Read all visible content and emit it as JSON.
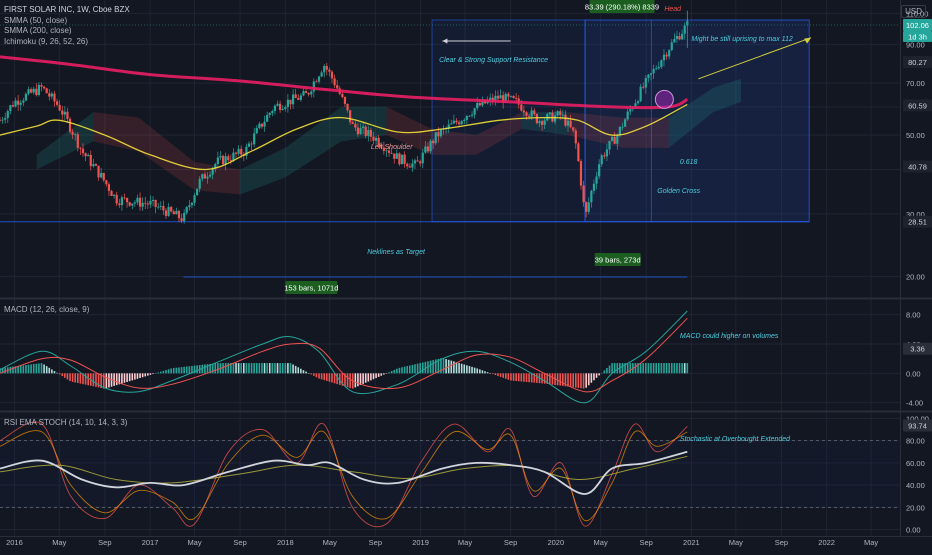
{
  "chart_header": {
    "title": "FIRST SOLAR INC, 1W, Cboe BZX",
    "indicators": [
      "SMMA (50, close)",
      "SMMA (200, close)",
      "Ichimoku (9, 26, 52, 26)"
    ],
    "currency": "USD"
  },
  "colors": {
    "background": "#131722",
    "grid": "#1f2433",
    "up": "#26a69a",
    "down": "#ef5350",
    "smma50": "#ffeb3b",
    "smma200": "#e91e63",
    "cloud_bull": "#1b5e20",
    "cloud_bear": "#7f1d1d",
    "box_blue": "#2962ff",
    "macd_line": "#26a69a",
    "signal_line": "#ef5350",
    "rsi_line": "#d1d4dc",
    "annotation_text": "#4dd0e1",
    "arrow": "#d4cf3f"
  },
  "chart_data": [
    {
      "type": "candlestick",
      "xlim": [
        "2015-11-23",
        "2022-07-18"
      ],
      "x_ticks": [
        "2016",
        "May",
        "Sep",
        "2017",
        "May",
        "Sep",
        "2018",
        "May",
        "Sep",
        "2019",
        "May",
        "Sep",
        "2020",
        "May",
        "Sep",
        "2021",
        "May",
        "Sep",
        "2022",
        "May"
      ],
      "y_ticks": [
        20.0,
        30.0,
        40.0,
        50.0,
        60.0,
        70.0,
        90.0,
        110.0
      ],
      "ylim": [
        17.5,
        120.0
      ],
      "scale": "log",
      "price_badges": [
        {
          "label": "102.06",
          "kind": "last"
        },
        {
          "label": "1d 3h",
          "kind": "countdown"
        },
        {
          "label": "80.27",
          "kind": "level"
        },
        {
          "label": "60.59",
          "kind": "level"
        },
        {
          "label": "40.78",
          "kind": "level"
        },
        {
          "label": "28.51",
          "kind": "level"
        }
      ],
      "series": [
        {
          "name": "SMMA (200, close)",
          "points": [
            [
              "2015-11-23",
              83
            ],
            [
              "2016-06-01",
              79
            ],
            [
              "2017-01-01",
              74
            ],
            [
              "2017-09-01",
              71
            ],
            [
              "2018-05-01",
              67
            ],
            [
              "2018-12-01",
              64
            ],
            [
              "2019-09-01",
              62
            ],
            [
              "2020-06-01",
              60
            ],
            [
              "2020-11-01",
              60
            ],
            [
              "2020-12-21",
              63
            ]
          ]
        },
        {
          "name": "SMMA (50, close)",
          "points": [
            [
              "2015-11-23",
              50
            ],
            [
              "2016-03-01",
              53
            ],
            [
              "2016-05-01",
              55
            ],
            [
              "2016-09-01",
              50
            ],
            [
              "2017-01-01",
              44
            ],
            [
              "2017-06-01",
              40
            ],
            [
              "2017-10-01",
              45
            ],
            [
              "2018-02-01",
              52
            ],
            [
              "2018-06-01",
              56
            ],
            [
              "2018-11-01",
              51
            ],
            [
              "2019-03-01",
              52
            ],
            [
              "2019-08-01",
              55
            ],
            [
              "2019-12-01",
              56
            ],
            [
              "2020-03-01",
              55
            ],
            [
              "2020-06-01",
              50
            ],
            [
              "2020-09-01",
              53
            ],
            [
              "2020-12-21",
              61
            ]
          ]
        },
        {
          "name": "Price (close, weekly approx.)",
          "points": [
            [
              "2015-11-23",
              55
            ],
            [
              "2016-01-01",
              62
            ],
            [
              "2016-03-15",
              68
            ],
            [
              "2016-05-01",
              60
            ],
            [
              "2016-07-01",
              45
            ],
            [
              "2016-10-01",
              33
            ],
            [
              "2017-01-01",
              32
            ],
            [
              "2017-04-01",
              29
            ],
            [
              "2017-05-15",
              37
            ],
            [
              "2017-07-01",
              42
            ],
            [
              "2017-09-15",
              45
            ],
            [
              "2017-12-01",
              60
            ],
            [
              "2018-03-01",
              65
            ],
            [
              "2018-04-15",
              79
            ],
            [
              "2018-05-15",
              70
            ],
            [
              "2018-07-01",
              53
            ],
            [
              "2018-09-01",
              49
            ],
            [
              "2018-11-01",
              43
            ],
            [
              "2018-12-20",
              41
            ],
            [
              "2019-02-15",
              50
            ],
            [
              "2019-04-15",
              55
            ],
            [
              "2019-06-01",
              60
            ],
            [
              "2019-08-01",
              64
            ],
            [
              "2019-09-15",
              62
            ],
            [
              "2019-11-15",
              55
            ],
            [
              "2020-01-15",
              57
            ],
            [
              "2020-02-20",
              50
            ],
            [
              "2020-03-20",
              29
            ],
            [
              "2020-05-01",
              43
            ],
            [
              "2020-06-15",
              50
            ],
            [
              "2020-08-01",
              62
            ],
            [
              "2020-09-15",
              74
            ],
            [
              "2020-11-01",
              88
            ],
            [
              "2020-12-21",
              102
            ]
          ]
        }
      ],
      "annotations": {
        "head_label": "Head",
        "target_note": "Might be still uprising to max 112",
        "support_note": "Clear & Strong Support Resistance",
        "left_shoulder": "Left Shoulder",
        "fib_level": "0.618",
        "golden_cross": "Golden Cross",
        "neckline_note": "Neklines as Target",
        "measure_top": "83.39 (290.18%) 8339",
        "measure_bars_left": "153 bars, 1071d",
        "measure_bars_right": "39 bars, 273d"
      }
    },
    {
      "type": "line",
      "title": "MACD (12, 26, close, 9)",
      "y_ticks": [
        8.0,
        4.0,
        0.0,
        -4.0
      ],
      "ylim": [
        -5,
        10
      ],
      "badge": "3.36",
      "annotation": "MACD could higher on volumes",
      "series": [
        {
          "name": "MACD",
          "points": [
            [
              "2015-11-23",
              0.5
            ],
            [
              "2016-03-15",
              3.0
            ],
            [
              "2016-06-01",
              1.0
            ],
            [
              "2016-09-01",
              -2.0
            ],
            [
              "2016-12-01",
              -2.5
            ],
            [
              "2017-03-01",
              -1.0
            ],
            [
              "2017-07-01",
              1.5
            ],
            [
              "2017-11-01",
              4.0
            ],
            [
              "2018-01-15",
              5.0
            ],
            [
              "2018-04-01",
              3.0
            ],
            [
              "2018-07-01",
              -2.5
            ],
            [
              "2018-11-01",
              -1.5
            ],
            [
              "2019-03-01",
              2.0
            ],
            [
              "2019-06-01",
              3.0
            ],
            [
              "2019-09-01",
              1.5
            ],
            [
              "2019-12-01",
              -1.0
            ],
            [
              "2020-03-20",
              -4.0
            ],
            [
              "2020-06-01",
              0.0
            ],
            [
              "2020-09-01",
              3.0
            ],
            [
              "2020-12-21",
              8.5
            ]
          ]
        },
        {
          "name": "Signal",
          "points": [
            [
              "2015-11-23",
              0.0
            ],
            [
              "2016-03-15",
              2.0
            ],
            [
              "2016-06-01",
              1.8
            ],
            [
              "2016-09-01",
              -0.5
            ],
            [
              "2016-12-01",
              -2.0
            ],
            [
              "2017-03-01",
              -1.5
            ],
            [
              "2017-07-01",
              0.5
            ],
            [
              "2017-11-01",
              3.0
            ],
            [
              "2018-01-15",
              4.0
            ],
            [
              "2018-04-01",
              3.5
            ],
            [
              "2018-07-01",
              -1.0
            ],
            [
              "2018-11-01",
              -2.0
            ],
            [
              "2019-03-01",
              0.5
            ],
            [
              "2019-06-01",
              2.5
            ],
            [
              "2019-09-01",
              2.2
            ],
            [
              "2019-12-01",
              0.0
            ],
            [
              "2020-03-20",
              -2.5
            ],
            [
              "2020-06-01",
              -1.0
            ],
            [
              "2020-09-01",
              2.0
            ],
            [
              "2020-12-21",
              7.5
            ]
          ]
        }
      ]
    },
    {
      "type": "line",
      "title": "RSI EMA STOCH (14, 10, 14, 3, 3)",
      "y_ticks": [
        100.0,
        80.0,
        60.0,
        40.0,
        20.0,
        0.0
      ],
      "ylim": [
        -5,
        105
      ],
      "badge": "93.74",
      "annotation": "Stochastic at Overbought Extended",
      "series": [
        {
          "name": "RSI",
          "points": [
            [
              "2015-11-23",
              55
            ],
            [
              "2016-03-15",
              62
            ],
            [
              "2016-07-01",
              45
            ],
            [
              "2016-10-01",
              38
            ],
            [
              "2017-01-01",
              42
            ],
            [
              "2017-04-01",
              40
            ],
            [
              "2017-08-01",
              52
            ],
            [
              "2017-12-01",
              62
            ],
            [
              "2018-03-01",
              58
            ],
            [
              "2018-05-01",
              60
            ],
            [
              "2018-08-01",
              45
            ],
            [
              "2018-11-01",
              42
            ],
            [
              "2019-03-01",
              55
            ],
            [
              "2019-06-01",
              60
            ],
            [
              "2019-09-01",
              58
            ],
            [
              "2019-12-01",
              52
            ],
            [
              "2020-03-20",
              32
            ],
            [
              "2020-06-01",
              55
            ],
            [
              "2020-09-01",
              60
            ],
            [
              "2020-12-21",
              70
            ]
          ]
        },
        {
          "name": "EMA",
          "points": [
            [
              "2015-11-23",
              52
            ],
            [
              "2016-05-01",
              58
            ],
            [
              "2016-10-01",
              45
            ],
            [
              "2017-03-01",
              42
            ],
            [
              "2017-09-01",
              50
            ],
            [
              "2018-02-01",
              58
            ],
            [
              "2018-07-01",
              52
            ],
            [
              "2018-12-01",
              46
            ],
            [
              "2019-05-01",
              55
            ],
            [
              "2019-10-01",
              57
            ],
            [
              "2020-03-01",
              45
            ],
            [
              "2020-08-01",
              55
            ],
            [
              "2020-12-21",
              66
            ]
          ]
        },
        {
          "name": "Stoch %K",
          "points": [
            [
              "2015-11-23",
              80
            ],
            [
              "2016-03-15",
              95
            ],
            [
              "2016-06-01",
              30
            ],
            [
              "2016-09-01",
              10
            ],
            [
              "2016-12-01",
              40
            ],
            [
              "2017-03-01",
              20
            ],
            [
              "2017-05-01",
              5
            ],
            [
              "2017-08-01",
              70
            ],
            [
              "2017-11-01",
              90
            ],
            [
              "2018-02-01",
              60
            ],
            [
              "2018-04-15",
              95
            ],
            [
              "2018-07-01",
              20
            ],
            [
              "2018-10-01",
              5
            ],
            [
              "2019-01-01",
              60
            ],
            [
              "2019-04-01",
              95
            ],
            [
              "2019-07-01",
              70
            ],
            [
              "2019-09-01",
              90
            ],
            [
              "2019-11-01",
              30
            ],
            [
              "2020-01-15",
              60
            ],
            [
              "2020-03-20",
              3
            ],
            [
              "2020-06-01",
              50
            ],
            [
              "2020-08-01",
              95
            ],
            [
              "2020-10-01",
              70
            ],
            [
              "2020-12-21",
              93
            ]
          ]
        },
        {
          "name": "Stoch %D",
          "points": [
            [
              "2015-11-23",
              75
            ],
            [
              "2016-03-15",
              88
            ],
            [
              "2016-06-01",
              40
            ],
            [
              "2016-09-01",
              15
            ],
            [
              "2016-12-01",
              35
            ],
            [
              "2017-03-01",
              25
            ],
            [
              "2017-05-01",
              10
            ],
            [
              "2017-08-01",
              60
            ],
            [
              "2017-11-01",
              85
            ],
            [
              "2018-02-01",
              65
            ],
            [
              "2018-04-15",
              88
            ],
            [
              "2018-07-01",
              30
            ],
            [
              "2018-10-01",
              10
            ],
            [
              "2019-01-01",
              50
            ],
            [
              "2019-04-01",
              88
            ],
            [
              "2019-07-01",
              72
            ],
            [
              "2019-09-01",
              85
            ],
            [
              "2019-11-01",
              35
            ],
            [
              "2020-01-15",
              55
            ],
            [
              "2020-03-20",
              8
            ],
            [
              "2020-06-01",
              42
            ],
            [
              "2020-08-01",
              88
            ],
            [
              "2020-10-01",
              75
            ],
            [
              "2020-12-21",
              88
            ]
          ]
        }
      ]
    }
  ]
}
